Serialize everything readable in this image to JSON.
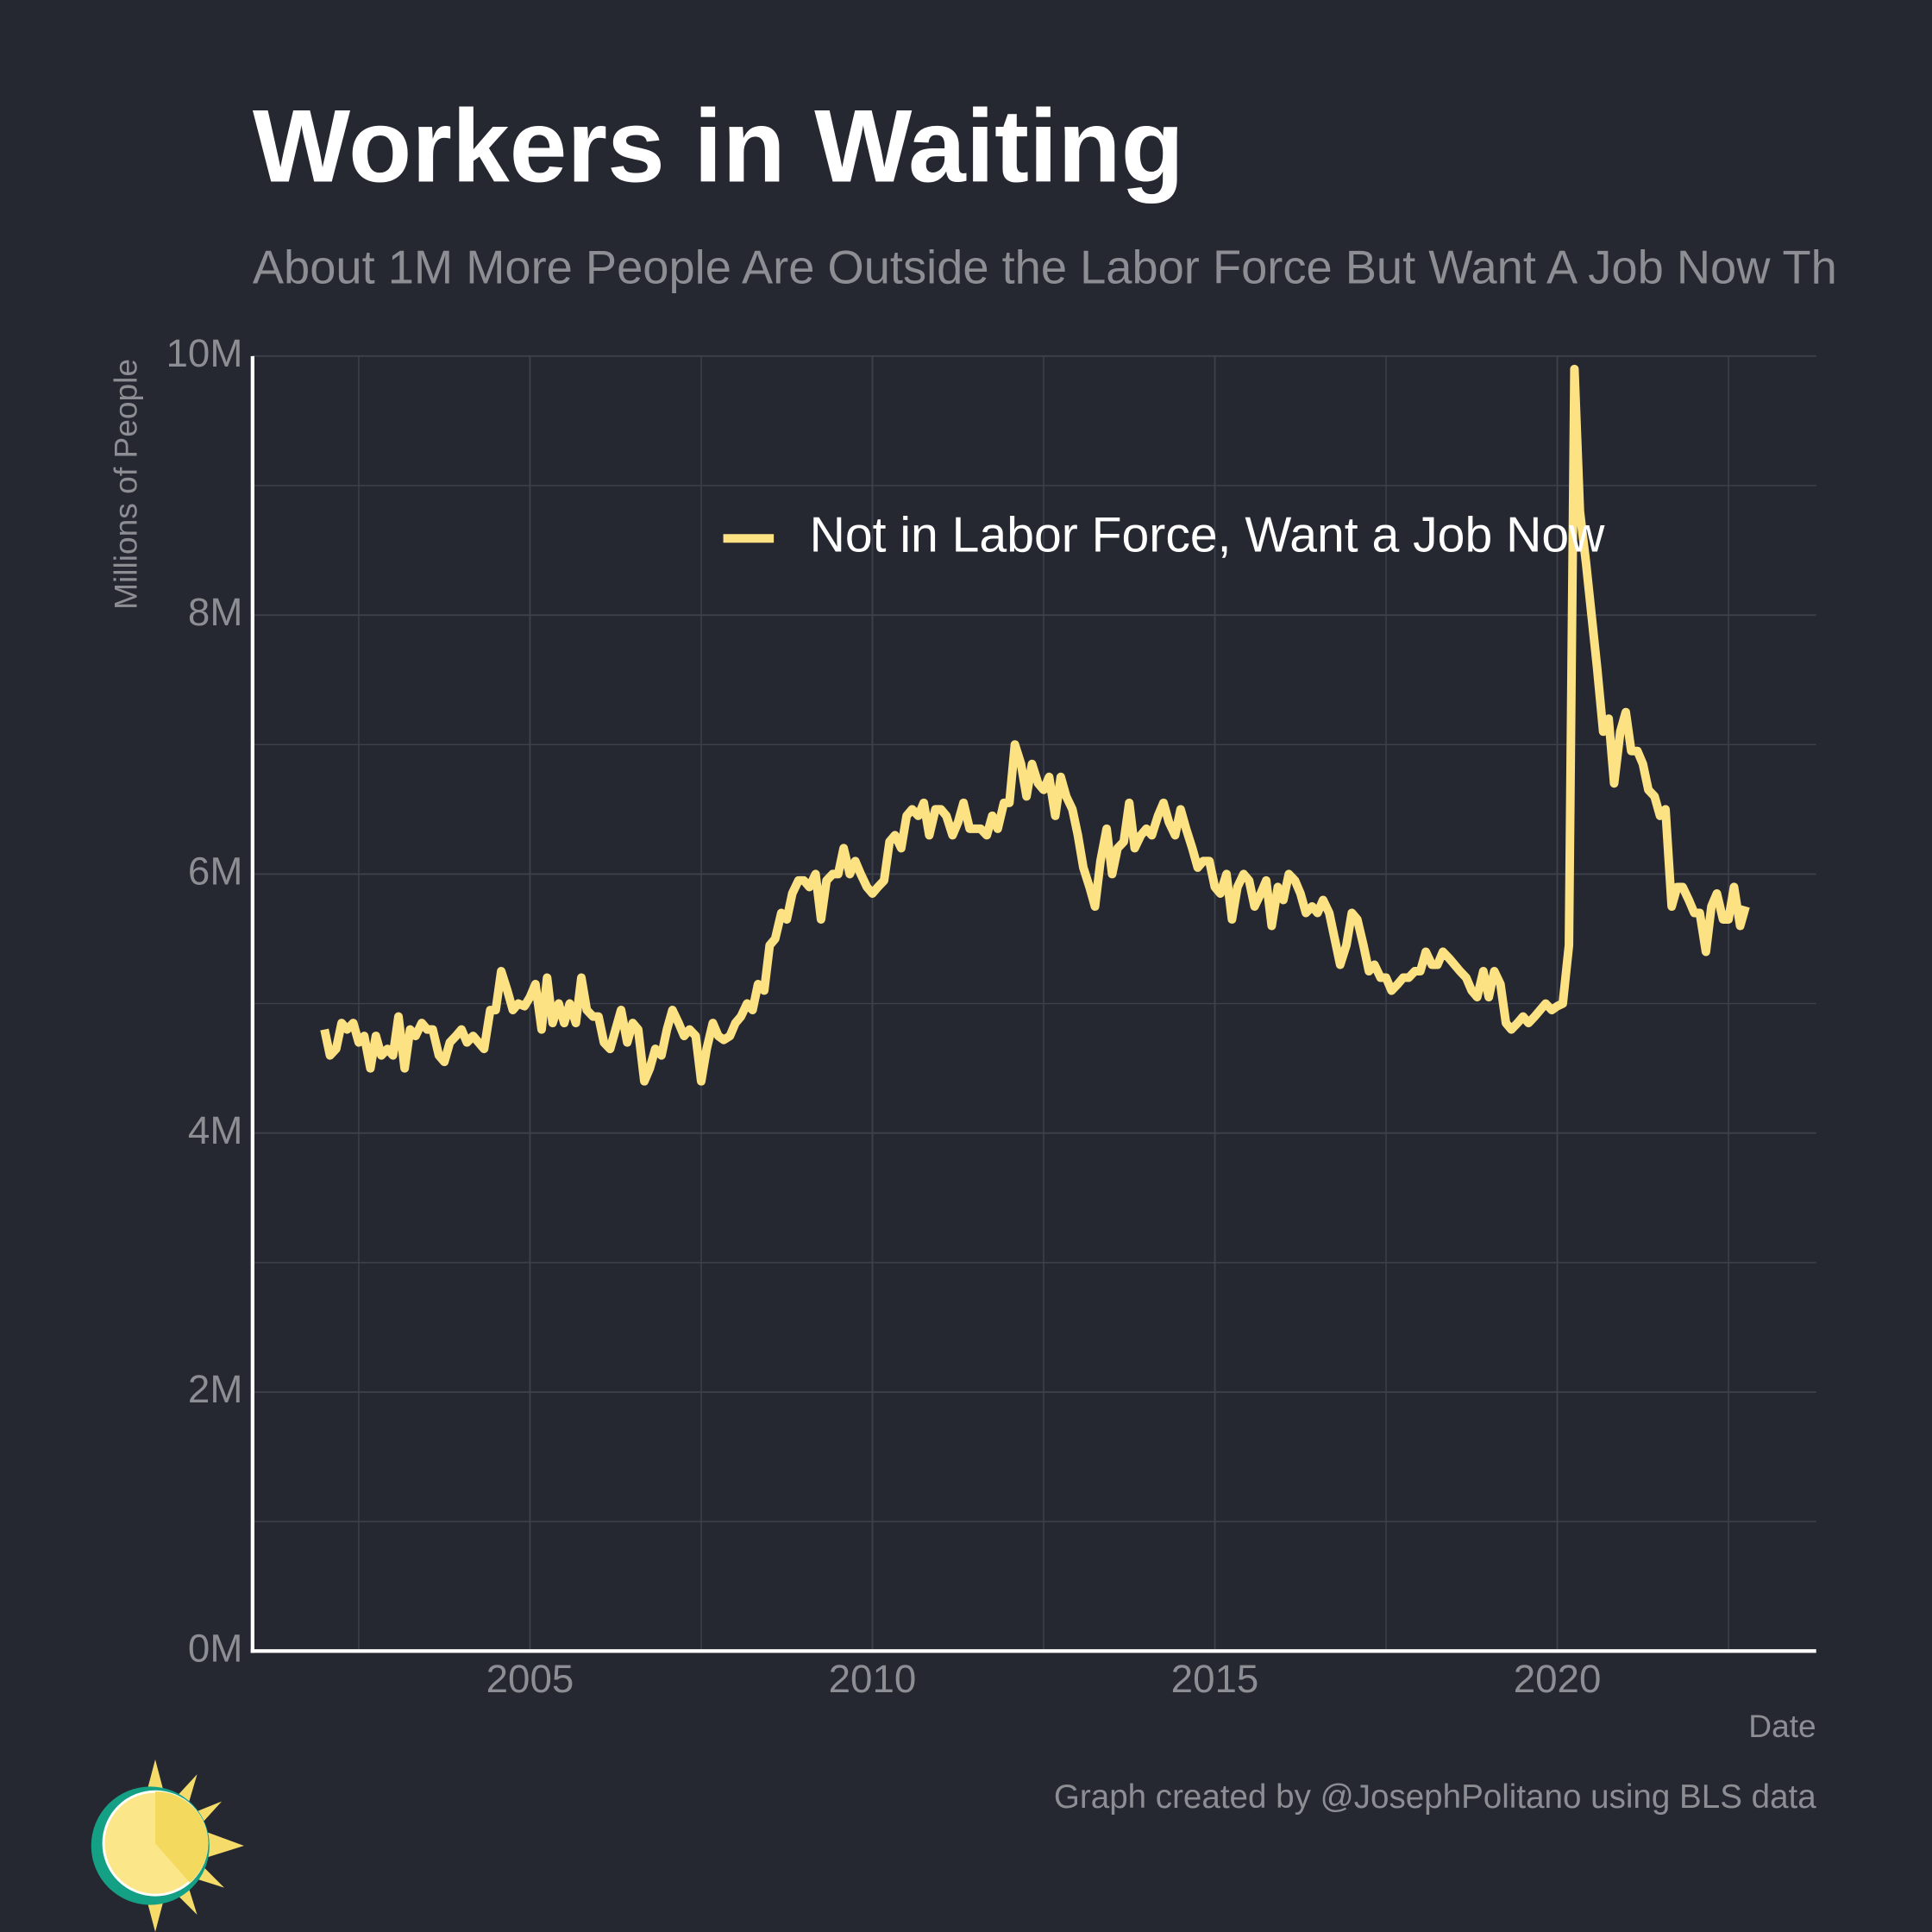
{
  "chart_data": {
    "type": "line",
    "title": "Workers in Waiting",
    "subtitle": "About 1M More People Are Outside the Labor Force But Want A Job Now Th",
    "y_label": "Millions of People",
    "x_label": "Date",
    "caption": "Graph created by @JosephPolitano using BLS data",
    "xlim": [
      2000.95,
      2023.78
    ],
    "xticks": [
      2005,
      2010,
      2015,
      2020
    ],
    "x_minor_ticks": [
      2002.5,
      2007.5,
      2012.5,
      2017.5,
      2022.5
    ],
    "ylim": [
      0,
      10
    ],
    "yticks": [
      {
        "value": 0,
        "label": "0M"
      },
      {
        "value": 2,
        "label": "2M"
      },
      {
        "value": 4,
        "label": "4M"
      },
      {
        "value": 6,
        "label": "6M"
      },
      {
        "value": 8,
        "label": "8M"
      },
      {
        "value": 10,
        "label": "10M"
      }
    ],
    "y_minor_ticks": [
      1,
      3,
      5,
      7,
      9
    ],
    "grid": true,
    "legend": "top-right",
    "x": [
      2002.0,
      2002.08,
      2002.17,
      2002.25,
      2002.33,
      2002.42,
      2002.5,
      2002.58,
      2002.67,
      2002.75,
      2002.83,
      2002.92,
      2003.0,
      2003.08,
      2003.17,
      2003.25,
      2003.33,
      2003.42,
      2003.5,
      2003.58,
      2003.67,
      2003.75,
      2003.83,
      2003.92,
      2004.0,
      2004.08,
      2004.17,
      2004.25,
      2004.33,
      2004.42,
      2004.5,
      2004.58,
      2004.67,
      2004.75,
      2004.83,
      2004.92,
      2005.0,
      2005.08,
      2005.17,
      2005.25,
      2005.33,
      2005.42,
      2005.5,
      2005.58,
      2005.67,
      2005.75,
      2005.83,
      2005.92,
      2006.0,
      2006.08,
      2006.17,
      2006.25,
      2006.33,
      2006.42,
      2006.5,
      2006.58,
      2006.67,
      2006.75,
      2006.83,
      2006.92,
      2007.0,
      2007.08,
      2007.17,
      2007.25,
      2007.33,
      2007.42,
      2007.5,
      2007.58,
      2007.67,
      2007.75,
      2007.83,
      2007.92,
      2008.0,
      2008.08,
      2008.17,
      2008.25,
      2008.33,
      2008.42,
      2008.5,
      2008.58,
      2008.67,
      2008.75,
      2008.83,
      2008.92,
      2009.0,
      2009.08,
      2009.17,
      2009.25,
      2009.33,
      2009.42,
      2009.5,
      2009.58,
      2009.67,
      2009.75,
      2009.83,
      2009.92,
      2010.0,
      2010.08,
      2010.17,
      2010.25,
      2010.33,
      2010.42,
      2010.5,
      2010.58,
      2010.67,
      2010.75,
      2010.83,
      2010.92,
      2011.0,
      2011.08,
      2011.17,
      2011.25,
      2011.33,
      2011.42,
      2011.5,
      2011.58,
      2011.67,
      2011.75,
      2011.83,
      2011.92,
      2012.0,
      2012.08,
      2012.17,
      2012.25,
      2012.33,
      2012.42,
      2012.5,
      2012.58,
      2012.67,
      2012.75,
      2012.83,
      2012.92,
      2013.0,
      2013.08,
      2013.17,
      2013.25,
      2013.33,
      2013.42,
      2013.5,
      2013.58,
      2013.67,
      2013.75,
      2013.83,
      2013.92,
      2014.0,
      2014.08,
      2014.17,
      2014.25,
      2014.33,
      2014.42,
      2014.5,
      2014.58,
      2014.67,
      2014.75,
      2014.83,
      2014.92,
      2015.0,
      2015.08,
      2015.17,
      2015.25,
      2015.33,
      2015.42,
      2015.5,
      2015.58,
      2015.67,
      2015.75,
      2015.83,
      2015.92,
      2016.0,
      2016.08,
      2016.17,
      2016.25,
      2016.33,
      2016.42,
      2016.5,
      2016.58,
      2016.67,
      2016.75,
      2016.83,
      2016.92,
      2017.0,
      2017.08,
      2017.17,
      2017.25,
      2017.33,
      2017.42,
      2017.5,
      2017.58,
      2017.67,
      2017.75,
      2017.83,
      2017.92,
      2018.0,
      2018.08,
      2018.17,
      2018.25,
      2018.33,
      2018.42,
      2018.5,
      2018.58,
      2018.67,
      2018.75,
      2018.83,
      2018.92,
      2019.0,
      2019.08,
      2019.17,
      2019.25,
      2019.33,
      2019.42,
      2019.5,
      2019.58,
      2019.67,
      2019.75,
      2019.83,
      2019.92,
      2020.0,
      2020.08,
      2020.17,
      2020.25,
      2020.33,
      2020.42,
      2020.5,
      2020.58,
      2020.67,
      2020.75,
      2020.83,
      2020.92,
      2021.0,
      2021.08,
      2021.17,
      2021.25,
      2021.33,
      2021.42,
      2021.5,
      2021.58,
      2021.67,
      2021.75,
      2021.83,
      2021.92,
      2022.0,
      2022.08,
      2022.17,
      2022.25,
      2022.33,
      2022.42,
      2022.5,
      2022.58,
      2022.67,
      2022.75
    ],
    "series": [
      {
        "name": "Not in Labor Force, Want a Job Now",
        "color": "#fde283",
        "values": [
          4.8,
          4.6,
          4.65,
          4.85,
          4.8,
          4.85,
          4.7,
          4.75,
          4.5,
          4.75,
          4.6,
          4.65,
          4.6,
          4.9,
          4.5,
          4.8,
          4.75,
          4.85,
          4.8,
          4.8,
          4.6,
          4.55,
          4.7,
          4.75,
          4.8,
          4.7,
          4.75,
          4.7,
          4.65,
          4.95,
          4.95,
          5.25,
          5.1,
          4.95,
          5.0,
          4.98,
          5.05,
          5.15,
          4.8,
          5.2,
          4.85,
          5.0,
          4.85,
          5.0,
          4.85,
          5.2,
          4.95,
          4.9,
          4.9,
          4.7,
          4.65,
          4.8,
          4.95,
          4.7,
          4.85,
          4.8,
          4.4,
          4.5,
          4.65,
          4.6,
          4.8,
          4.95,
          4.85,
          4.75,
          4.8,
          4.75,
          4.4,
          4.65,
          4.85,
          4.75,
          4.72,
          4.75,
          4.85,
          4.9,
          5.0,
          4.95,
          5.15,
          5.1,
          5.45,
          5.5,
          5.7,
          5.65,
          5.85,
          5.95,
          5.95,
          5.9,
          6.0,
          5.65,
          5.95,
          6.0,
          6.0,
          6.2,
          6.0,
          6.1,
          6.0,
          5.9,
          5.85,
          5.9,
          5.95,
          6.25,
          6.3,
          6.2,
          6.45,
          6.5,
          6.45,
          6.55,
          6.3,
          6.5,
          6.5,
          6.45,
          6.3,
          6.4,
          6.55,
          6.35,
          6.35,
          6.35,
          6.3,
          6.45,
          6.35,
          6.55,
          6.55,
          7.0,
          6.85,
          6.6,
          6.85,
          6.7,
          6.65,
          6.75,
          6.45,
          6.75,
          6.6,
          6.5,
          6.3,
          6.05,
          5.9,
          5.75,
          6.1,
          6.35,
          6.0,
          6.2,
          6.25,
          6.55,
          6.2,
          6.3,
          6.35,
          6.3,
          6.45,
          6.55,
          6.4,
          6.3,
          6.5,
          6.35,
          6.2,
          6.05,
          6.1,
          6.1,
          5.9,
          5.85,
          6.0,
          5.65,
          5.9,
          6.0,
          5.95,
          5.75,
          5.85,
          5.95,
          5.6,
          5.9,
          5.8,
          6.0,
          5.95,
          5.85,
          5.7,
          5.75,
          5.7,
          5.8,
          5.7,
          5.5,
          5.3,
          5.45,
          5.7,
          5.65,
          5.45,
          5.25,
          5.3,
          5.2,
          5.2,
          5.1,
          5.15,
          5.2,
          5.2,
          5.25,
          5.25,
          5.4,
          5.3,
          5.3,
          5.4,
          5.35,
          5.3,
          5.25,
          5.2,
          5.1,
          5.05,
          5.25,
          5.05,
          5.25,
          5.15,
          4.85,
          4.8,
          4.85,
          4.9,
          4.85,
          4.9,
          4.95,
          5.0,
          4.95,
          4.98,
          5.0,
          5.45,
          9.9,
          8.8,
          8.4,
          8.0,
          7.6,
          7.1,
          7.2,
          6.7,
          7.1,
          7.25,
          6.95,
          6.95,
          6.85,
          6.65,
          6.6,
          6.45,
          6.5,
          5.75,
          5.9,
          5.9,
          5.8,
          5.7,
          5.7,
          5.4,
          5.75,
          5.85,
          5.65,
          5.65,
          5.9,
          5.6,
          5.75
        ]
      }
    ]
  }
}
